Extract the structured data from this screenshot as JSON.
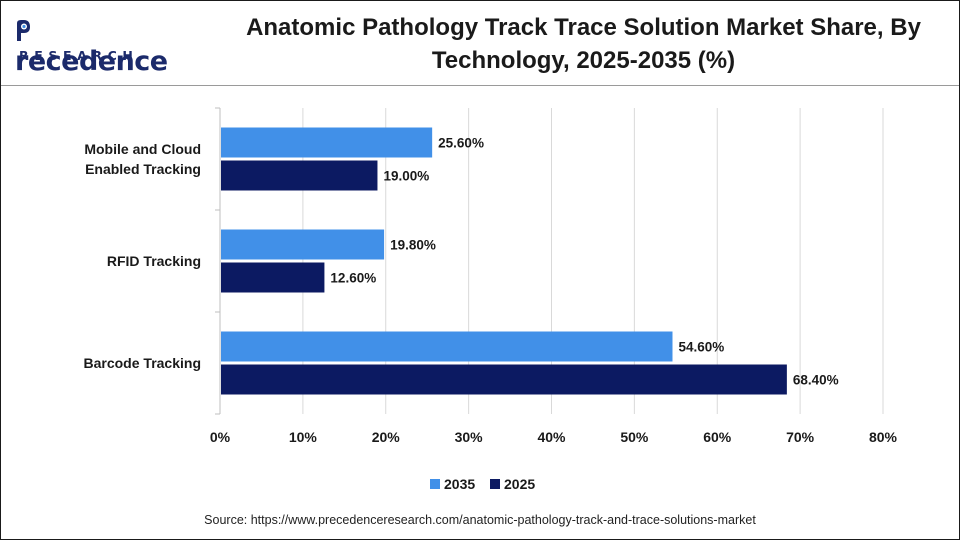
{
  "header": {
    "logo_word": "recedence",
    "logo_sub": "RESEARCH",
    "title_line1": "Anatomic Pathology Track Trace Solution Market Share, By",
    "title_line2": "Technology, 2025-2035 (%)"
  },
  "source": "Source: https://www.precedenceresearch.com/anatomic-pathology-track-and-trace-solutions-market",
  "chart_data": {
    "type": "bar",
    "orientation": "horizontal",
    "categories": [
      [
        "Mobile and Cloud",
        "Enabled Tracking"
      ],
      [
        "RFID Tracking"
      ],
      [
        "Barcode Tracking"
      ]
    ],
    "series": [
      {
        "name": "2035",
        "color": "#4190e8",
        "values": [
          25.6,
          19.8,
          54.6
        ],
        "labels": [
          "25.60%",
          "19.80%",
          "54.60%"
        ]
      },
      {
        "name": "2025",
        "color": "#0c1a62",
        "values": [
          19.0,
          12.6,
          68.4
        ],
        "labels": [
          "19.00%",
          "12.60%",
          "68.40%"
        ]
      }
    ],
    "xlim": [
      0,
      80
    ],
    "xticks": [
      "0%",
      "10%",
      "20%",
      "30%",
      "40%",
      "50%",
      "60%",
      "70%",
      "80%"
    ],
    "grid": "vertical",
    "legend": "bottom-center"
  }
}
